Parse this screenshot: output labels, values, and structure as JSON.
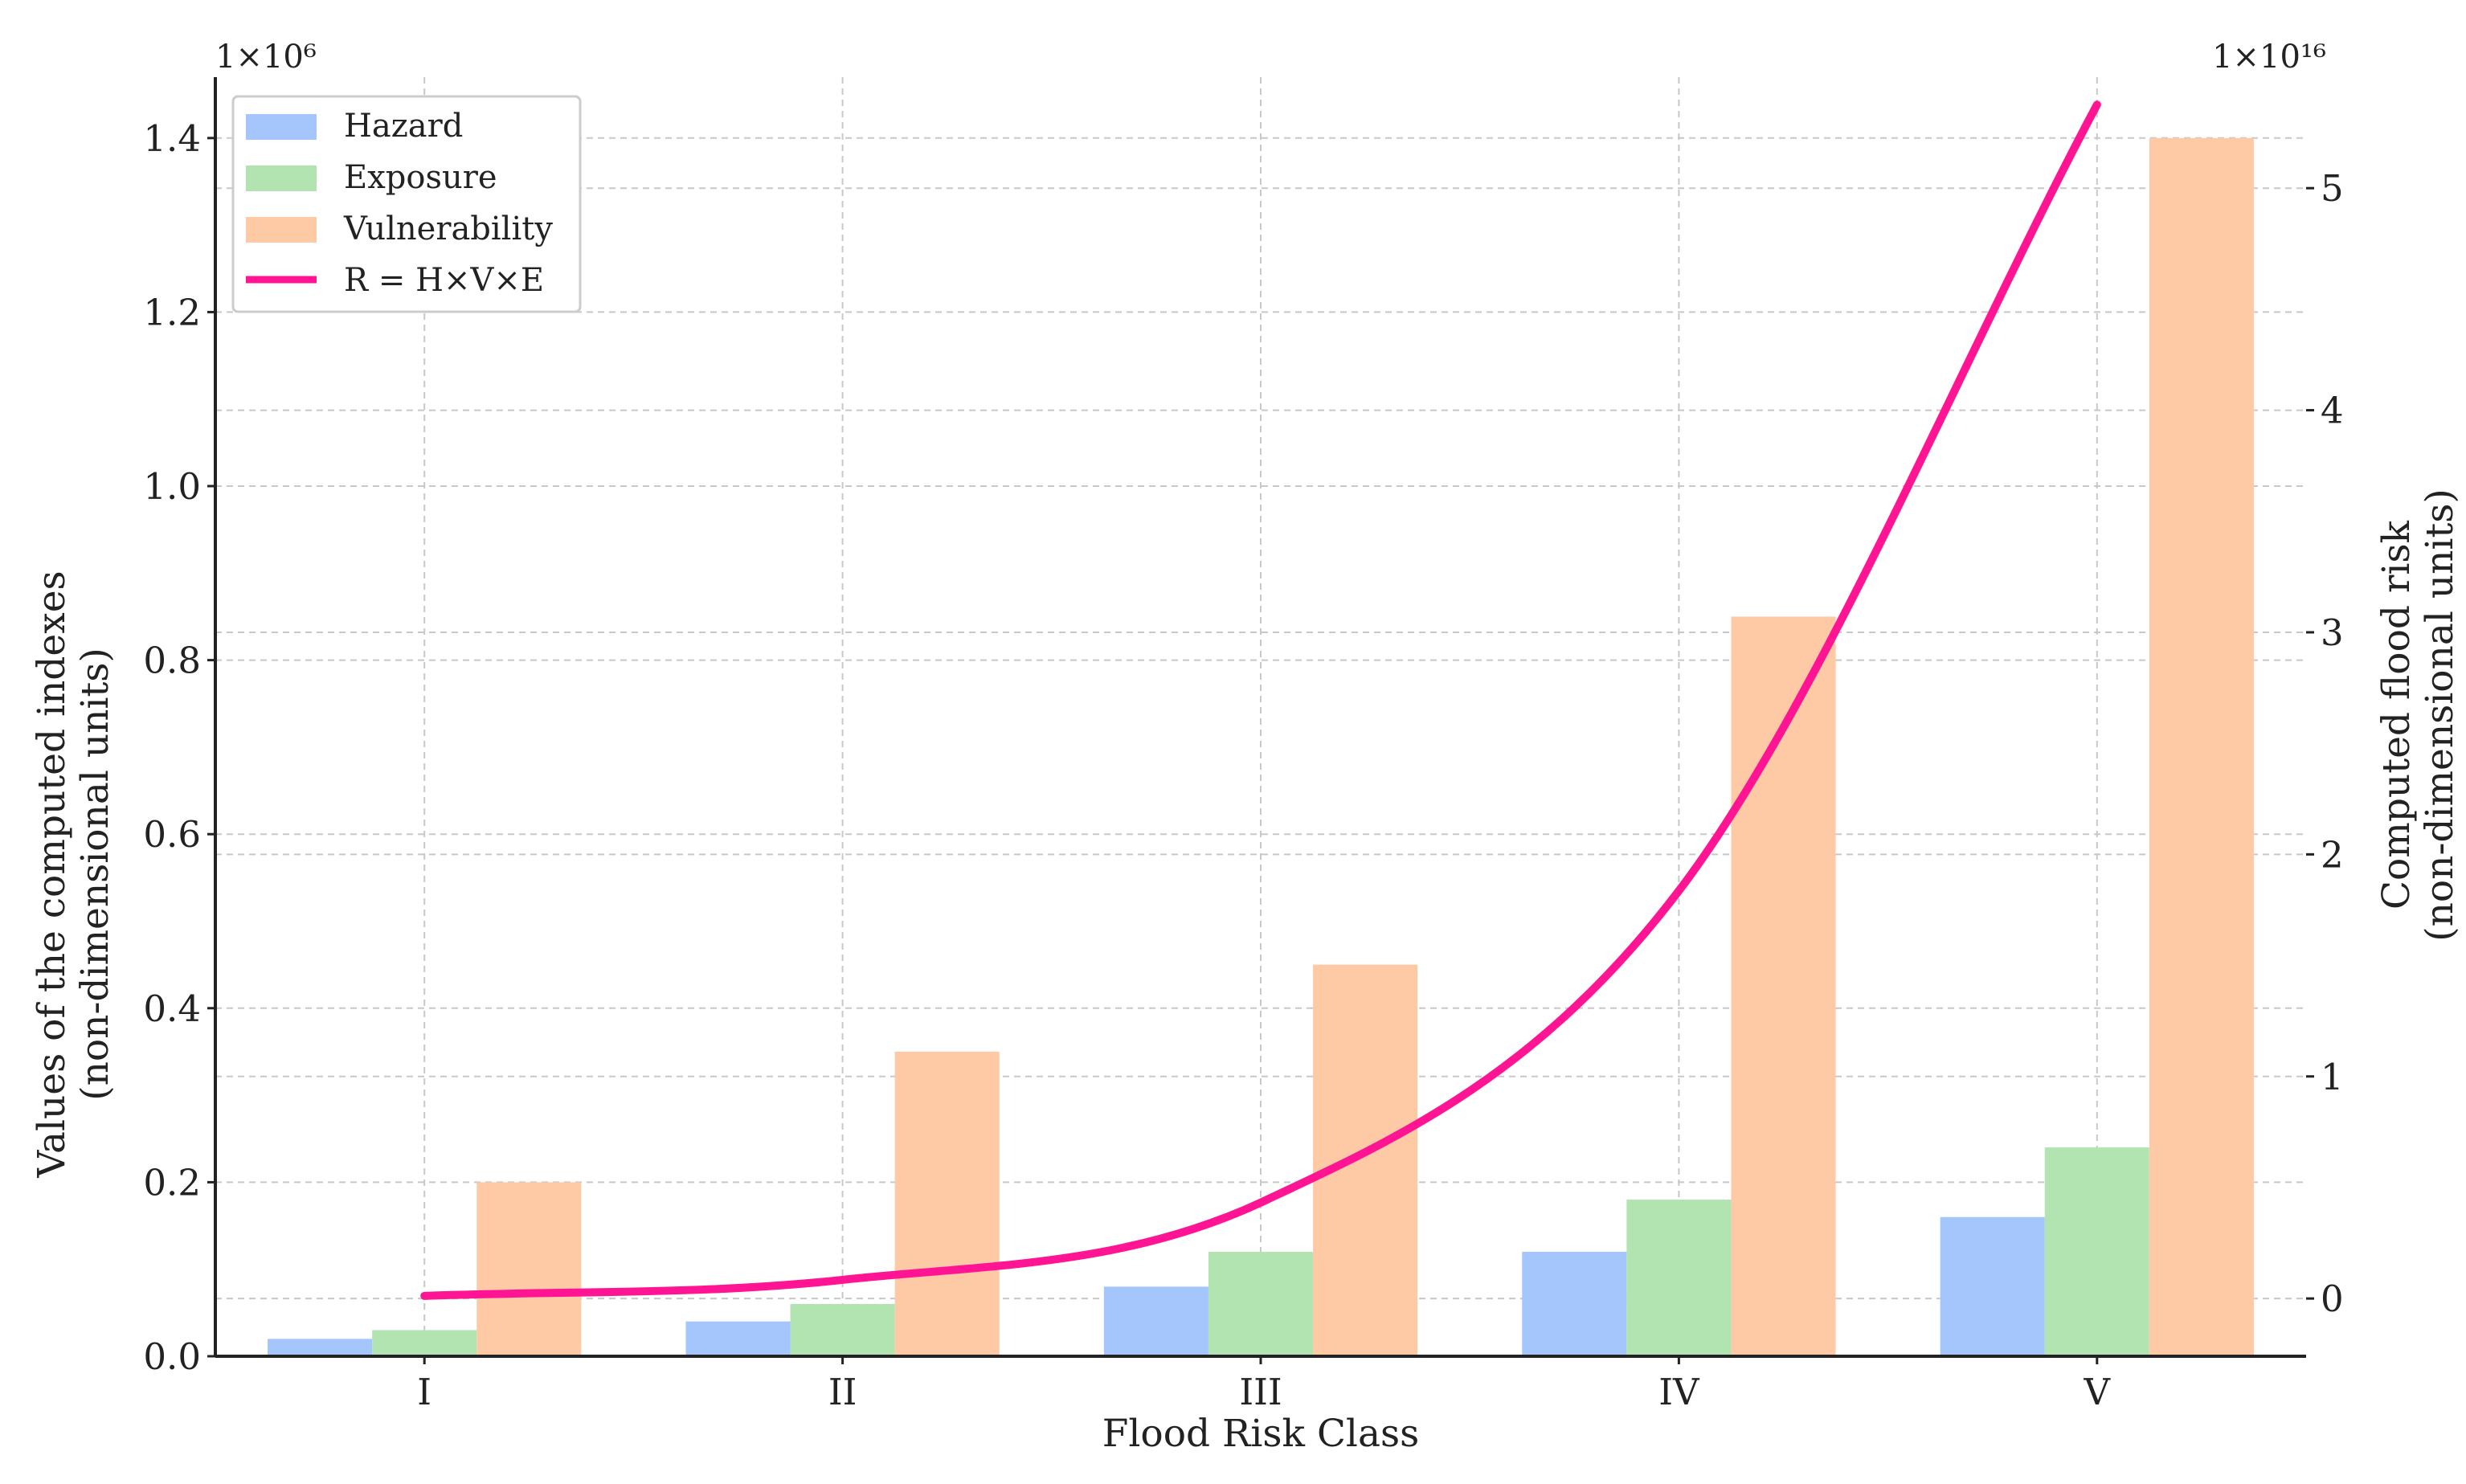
{
  "chart_data": {
    "type": "bar",
    "categories": [
      "I",
      "II",
      "III",
      "IV",
      "V"
    ],
    "series": [
      {
        "name": "Hazard",
        "axis": "left",
        "color": "#a4c6fd",
        "values": [
          20000,
          40000,
          80000,
          120000,
          160000
        ]
      },
      {
        "name": "Exposure",
        "axis": "left",
        "color": "#b1e4b1",
        "values": [
          30000,
          60000,
          120000,
          180000,
          240000
        ]
      },
      {
        "name": "Vulnerability",
        "axis": "left",
        "color": "#fecaa6",
        "values": [
          200000,
          350000,
          450000,
          850000,
          1400000
        ]
      }
    ],
    "line": {
      "name": "R = H×V×E",
      "type": "line",
      "axis": "right",
      "color": "#ff1493",
      "x": [
        "I",
        "II",
        "III",
        "IV",
        "V"
      ],
      "values": [
        120000000000000.0,
        840000000000000.0,
        4320000000000000.0,
        1.836e+16,
        5.376e+16
      ],
      "smooth": true
    },
    "xlabel": "Flood Risk Class",
    "ylabel": [
      "Values of the computed indexes",
      "(non-dimensional units)"
    ],
    "y2label": [
      "Computed flood risk",
      "(non-dimensional units)"
    ],
    "ylim": [
      0,
      1470000
    ],
    "y2lim": [
      -2600000000000000.0,
      5.5e+16
    ],
    "yticks": [
      0,
      200000,
      400000,
      600000,
      800000,
      1000000,
      1200000,
      1400000
    ],
    "ytick_labels": [
      "0.0",
      "0.2",
      "0.4",
      "0.6",
      "0.8",
      "1.0",
      "1.2",
      "1.4"
    ],
    "y2ticks": [
      0,
      1e+16,
      2e+16,
      3e+16,
      4e+16,
      5e+16
    ],
    "y2tick_labels": [
      "0",
      "1",
      "2",
      "3",
      "4",
      "5"
    ],
    "y_scale_label": "1×10⁶",
    "y2_scale_label": "1×10¹⁶",
    "grid": true,
    "legend": {
      "position": "top-left",
      "items": [
        {
          "label": "Hazard",
          "kind": "patch",
          "color": "#a4c6fd"
        },
        {
          "label": "Exposure",
          "kind": "patch",
          "color": "#b1e4b1"
        },
        {
          "label": "Vulnerability",
          "kind": "patch",
          "color": "#fecaa6"
        },
        {
          "label": "R = H×V×E",
          "kind": "line",
          "color": "#ff1493"
        }
      ]
    }
  }
}
